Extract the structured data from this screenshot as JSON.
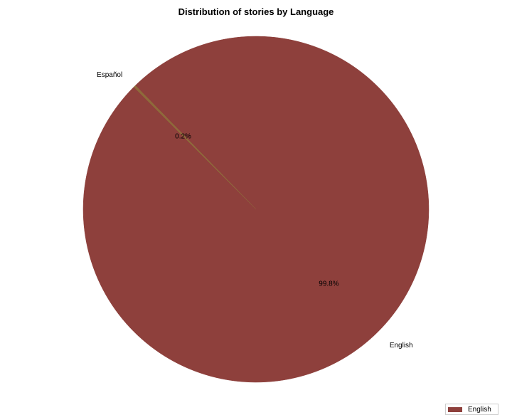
{
  "chart_data": {
    "type": "pie",
    "title": "Distribution of stories by Language",
    "categories": [
      "English",
      "Español"
    ],
    "values": [
      99.8,
      0.2
    ],
    "percent_labels": [
      "99.8%",
      "0.2%"
    ],
    "colors": [
      "#8e403c",
      "#8e6a3a"
    ],
    "legend": {
      "placement": "bottom-right",
      "entries": [
        "English"
      ]
    }
  }
}
